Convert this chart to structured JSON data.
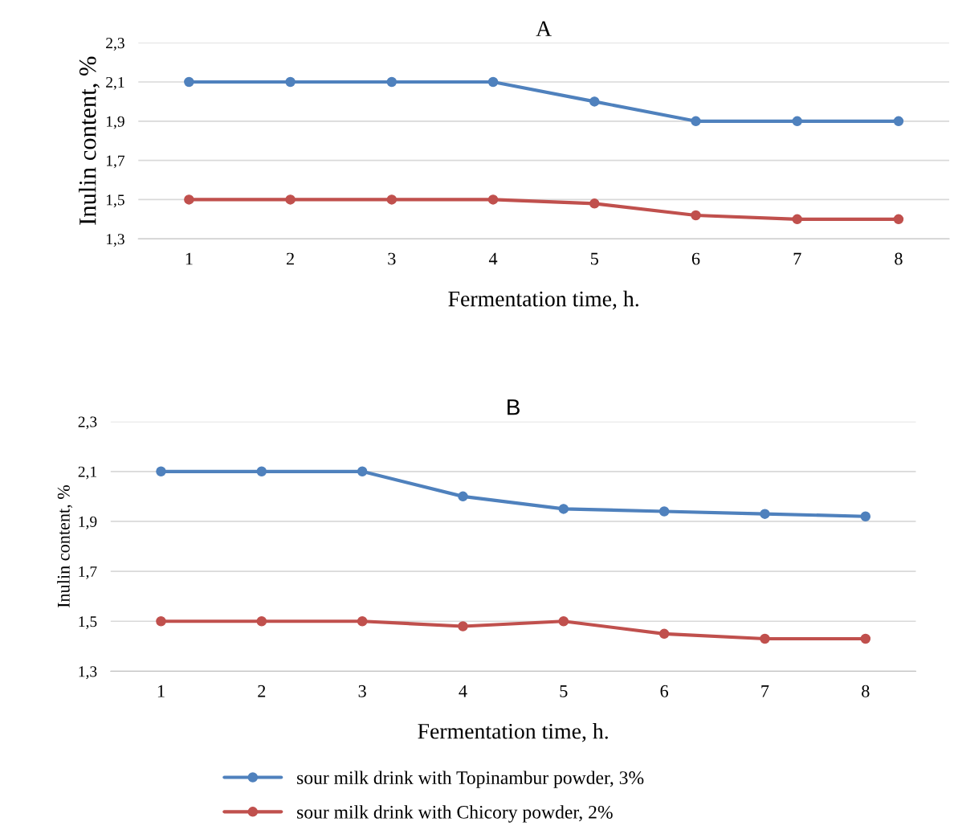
{
  "chart_data": [
    {
      "type": "line",
      "title": "A",
      "xlabel": "Fermentation time, h.",
      "ylabel": "Inulin content, %",
      "categories": [
        "1",
        "2",
        "3",
        "4",
        "5",
        "6",
        "7",
        "8"
      ],
      "series": [
        {
          "color": "#4f81bd",
          "values": [
            2.1,
            2.1,
            2.1,
            2.1,
            2.0,
            1.9,
            1.9,
            1.9
          ]
        },
        {
          "color": "#c0504d",
          "values": [
            1.5,
            1.5,
            1.5,
            1.5,
            1.48,
            1.42,
            1.4,
            1.4
          ]
        }
      ],
      "ylim": [
        1.3,
        2.3
      ],
      "yticks": [
        {
          "value": 1.3,
          "label": "1,3"
        },
        {
          "value": 1.5,
          "label": "1,5"
        },
        {
          "value": 1.7,
          "label": "1,7"
        },
        {
          "value": 1.9,
          "label": "1,9"
        },
        {
          "value": 2.1,
          "label": "2,1"
        },
        {
          "value": 2.3,
          "label": "2,3"
        }
      ],
      "grid": "y",
      "marker": "circle",
      "line_style": "solid",
      "legend": false
    },
    {
      "type": "line",
      "title": "B",
      "xlabel": "Fermentation time, h.",
      "ylabel": "Inulin content, %",
      "categories": [
        "1",
        "2",
        "3",
        "4",
        "5",
        "6",
        "7",
        "8"
      ],
      "series": [
        {
          "name": "sour milk drink with Topinambur powder, 3%",
          "color": "#4f81bd",
          "values": [
            2.1,
            2.1,
            2.1,
            2.0,
            1.95,
            1.94,
            1.93,
            1.92
          ]
        },
        {
          "name": "sour milk drink with Chicory powder, 2%",
          "color": "#c0504d",
          "values": [
            1.5,
            1.5,
            1.5,
            1.48,
            1.5,
            1.45,
            1.43,
            1.43
          ]
        }
      ],
      "ylim": [
        1.3,
        2.3
      ],
      "yticks": [
        {
          "value": 1.3,
          "label": "1,3"
        },
        {
          "value": 1.5,
          "label": "1,5"
        },
        {
          "value": 1.7,
          "label": "1,7"
        },
        {
          "value": 1.9,
          "label": "1,9"
        },
        {
          "value": 2.1,
          "label": "2,1"
        },
        {
          "value": 2.3,
          "label": "2,3"
        }
      ],
      "grid": "y",
      "marker": "circle",
      "line_style": "solid",
      "legend": "bottom"
    }
  ]
}
